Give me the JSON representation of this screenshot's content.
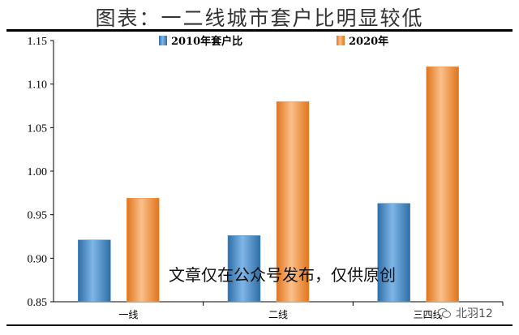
{
  "title": "图表：一二线城市套户比明显较低",
  "watermark": "文章仅在公众号发布，仅供原创",
  "wechat": {
    "name": "北羽12"
  },
  "colors": {
    "series_2010": "#4f8ec7",
    "series_2020": "#f39a4a"
  },
  "chart_data": {
    "type": "bar",
    "title": "图表：一二线城市套户比明显较低",
    "xlabel": "",
    "ylabel": "",
    "categories": [
      "一线",
      "二线",
      "三四线"
    ],
    "series": [
      {
        "name": "2010年套户比",
        "values": [
          0.921,
          0.926,
          0.963
        ]
      },
      {
        "name": "2020年",
        "values": [
          0.969,
          1.08,
          1.12
        ]
      }
    ],
    "ylim": [
      0.85,
      1.15
    ],
    "yticks": [
      "0.85",
      "0.90",
      "0.95",
      "1.00",
      "1.05",
      "1.10",
      "1.15"
    ],
    "legend": "top-center",
    "grid": false
  }
}
